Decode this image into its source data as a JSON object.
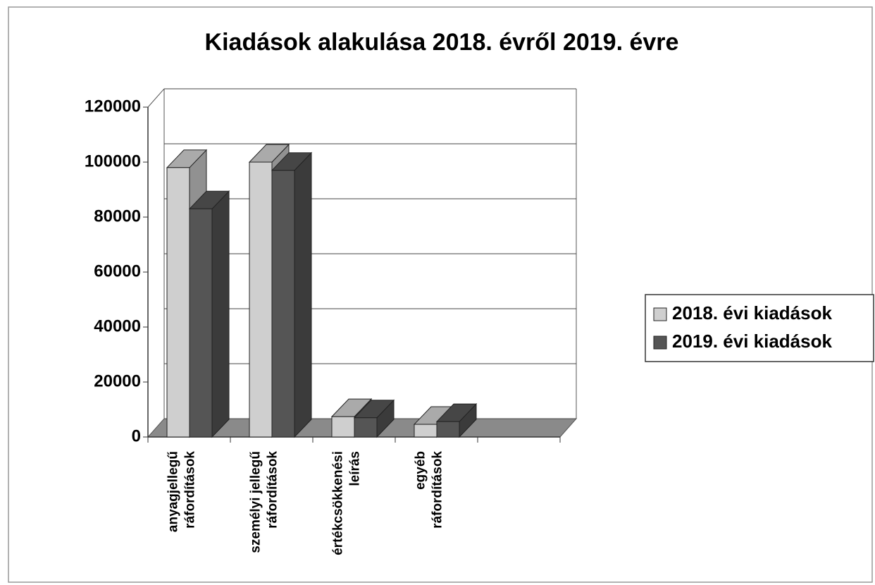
{
  "chart_data": {
    "type": "bar3d",
    "title": "Kiadások alakulása 2018. évről 2019. évre",
    "categories": [
      "anyagjellegű\nráfordítások",
      "személyi jellegű\nráfordítások",
      "értékcsökkenési\nleírás",
      "egyéb\nráfordítások",
      null
    ],
    "series": [
      {
        "name": "2018. évi kiadások",
        "color": "#cfcfcf",
        "values": [
          98000,
          100000,
          7400,
          4600,
          null
        ]
      },
      {
        "name": "2019. évi kiadások",
        "color": "#555555",
        "values": [
          83000,
          97000,
          7000,
          5600,
          null
        ]
      }
    ],
    "ylim": [
      0,
      120000
    ],
    "yticks": [
      0,
      20000,
      40000,
      60000,
      80000,
      100000,
      120000
    ],
    "grid": true,
    "legend": "right"
  }
}
